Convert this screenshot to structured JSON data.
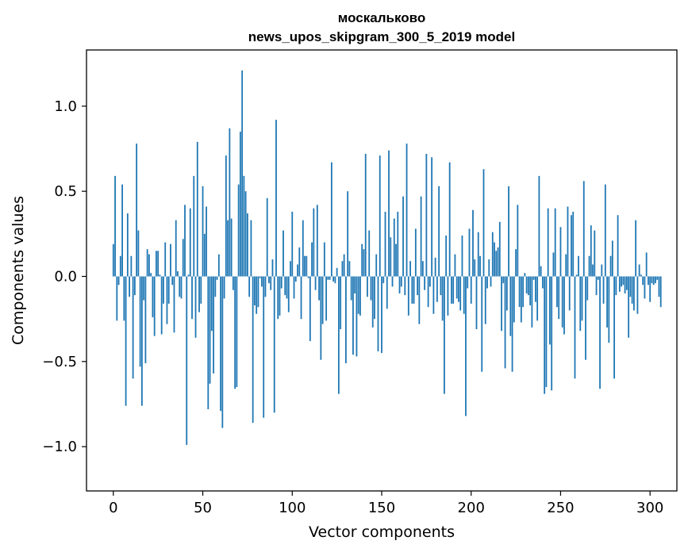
{
  "chart_data": {
    "type": "bar",
    "title_line1": "москальково",
    "title_line2": "news_upos_skipgram_300_5_2019 model",
    "xlabel": "Vector components",
    "ylabel": "Components values",
    "xlim": [
      -15,
      315
    ],
    "ylim": [
      -1.26,
      1.33
    ],
    "xticks": [
      0,
      50,
      100,
      150,
      200,
      250,
      300
    ],
    "xtick_labels": [
      "0",
      "50",
      "100",
      "150",
      "200",
      "250",
      "300"
    ],
    "yticks": [
      -1.0,
      -0.5,
      0.0,
      0.5,
      1.0
    ],
    "ytick_labels": [
      "−1.0",
      "−0.5",
      "0.0",
      "0.5",
      "1.0"
    ],
    "bar_color": "#1f77b4",
    "values": [
      0.19,
      0.59,
      -0.26,
      -0.05,
      0.12,
      0.54,
      -0.26,
      -0.76,
      0.37,
      -0.12,
      0.12,
      -0.6,
      -0.11,
      0.78,
      0.27,
      -0.53,
      -0.76,
      -0.14,
      -0.51,
      0.16,
      0.13,
      0.02,
      -0.24,
      -0.35,
      0.15,
      0.15,
      0.01,
      -0.34,
      -0.16,
      0.2,
      -0.28,
      -0.16,
      0.19,
      -0.05,
      -0.33,
      0.33,
      0.03,
      -0.12,
      -0.13,
      0.22,
      0.42,
      -0.99,
      0.01,
      0.4,
      -0.25,
      0.59,
      -0.36,
      0.79,
      -0.21,
      -0.16,
      0.53,
      0.25,
      0.41,
      -0.78,
      -0.63,
      -0.32,
      -0.57,
      -0.12,
      -0.02,
      0.13,
      -0.79,
      -0.89,
      -0.13,
      0.71,
      0.33,
      0.87,
      0.34,
      -0.08,
      -0.66,
      -0.65,
      0.54,
      0.85,
      1.21,
      0.59,
      0.5,
      0.37,
      -0.12,
      0.33,
      -0.86,
      -0.17,
      -0.22,
      -0.18,
      -0.01,
      -0.06,
      -0.83,
      -0.12,
      0.46,
      -0.04,
      -0.08,
      0.1,
      -0.8,
      0.92,
      -0.25,
      -0.23,
      -0.07,
      0.27,
      -0.11,
      -0.13,
      -0.21,
      0.09,
      0.38,
      -0.13,
      -0.03,
      0.07,
      0.17,
      -0.25,
      0.33,
      0.12,
      0.12,
      -0.01,
      -0.38,
      0.2,
      0.4,
      -0.08,
      0.42,
      -0.14,
      -0.49,
      -0.28,
      0.2,
      -0.26,
      -0.02,
      -0.02,
      0.67,
      -0.03,
      -0.04,
      0.05,
      -0.69,
      -0.31,
      0.09,
      0.13,
      -0.51,
      0.5,
      0.09,
      -0.14,
      -0.46,
      -0.1,
      -0.47,
      -0.22,
      -0.23,
      0.19,
      0.16,
      0.72,
      -0.12,
      0.27,
      -0.14,
      -0.3,
      -0.25,
      0.13,
      -0.44,
      0.71,
      -0.45,
      -0.04,
      0.38,
      -0.19,
      0.74,
      0.23,
      -0.06,
      0.34,
      0.19,
      0.38,
      -0.1,
      -0.06,
      0.47,
      -0.11,
      0.78,
      -0.23,
      0.09,
      -0.16,
      -0.16,
      0.28,
      -0.11,
      -0.28,
      0.47,
      0.09,
      -0.08,
      0.72,
      -0.18,
      -0.06,
      0.7,
      -0.22,
      0.11,
      -0.15,
      0.53,
      -0.11,
      -0.26,
      -0.69,
      0.24,
      -0.23,
      0.67,
      -0.16,
      -0.16,
      0.13,
      -0.13,
      -0.15,
      -0.2,
      0.24,
      -0.22,
      -0.82,
      -0.07,
      0.28,
      -0.16,
      0.39,
      0.1,
      -0.31,
      0.26,
      0.12,
      -0.56,
      0.63,
      -0.28,
      -0.07,
      0.1,
      -0.06,
      0.26,
      0.2,
      0.15,
      0.17,
      0.32,
      -0.32,
      -0.04,
      -0.54,
      -0.2,
      0.53,
      -0.35,
      -0.56,
      -0.27,
      0.16,
      0.42,
      -0.18,
      -0.27,
      -0.18,
      0.02,
      -0.1,
      -0.11,
      -0.17,
      -0.3,
      -0.02,
      -0.15,
      -0.26,
      0.59,
      0.06,
      -0.07,
      -0.69,
      -0.65,
      0.4,
      -0.4,
      -0.67,
      0.14,
      0.4,
      -0.18,
      -0.25,
      0.29,
      -0.3,
      -0.34,
      0.13,
      0.41,
      -0.2,
      0.36,
      0.38,
      -0.6,
      0.01,
      0.12,
      -0.32,
      -0.26,
      0.56,
      -0.49,
      -0.14,
      0.12,
      0.3,
      0.07,
      0.27,
      -0.11,
      -0.02,
      -0.66,
      0.07,
      -0.16,
      0.54,
      -0.3,
      -0.39,
      0.12,
      0.21,
      -0.6,
      -0.11,
      0.36,
      -0.09,
      -0.06,
      -0.05,
      -0.1,
      -0.08,
      -0.36,
      -0.12,
      -0.16,
      -0.2,
      0.33,
      -0.22,
      0.07,
      0.01,
      -0.05,
      -0.13,
      0.14,
      -0.05,
      -0.15,
      -0.04,
      -0.05,
      -0.04,
      -0.02,
      -0.12,
      -0.18
    ]
  }
}
